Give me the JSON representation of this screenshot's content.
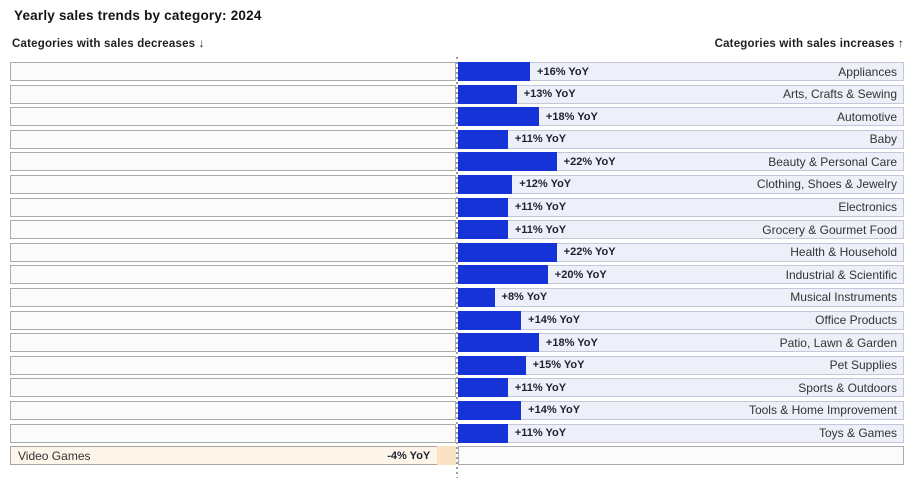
{
  "title": "Yearly sales trends by category: 2024",
  "headers": {
    "left": "Categories with sales decreases ↓",
    "right": "Categories with sales increases ↑"
  },
  "colors": {
    "increase_bar": "#1533d6",
    "increase_row_bg": "#eef0f9",
    "decrease_bar": "#fae3c3",
    "decrease_row_bg": "#fdf5ea",
    "empty_row_bg": "#fbfbfb"
  },
  "chart_data": {
    "type": "bar",
    "orientation": "horizontal-diverging",
    "title": "Yearly sales trends by category: 2024",
    "unit": "% YoY",
    "xlim_percent": [
      -100,
      100
    ],
    "legend": "none",
    "grid": "center-divider-dotted",
    "categories": [
      "Appliances",
      "Arts, Crafts & Sewing",
      "Automotive",
      "Baby",
      "Beauty & Personal Care",
      "Clothing, Shoes & Jewelry",
      "Electronics",
      "Grocery & Gourmet Food",
      "Health & Household",
      "Industrial & Scientific",
      "Musical Instruments",
      "Office Products",
      "Patio, Lawn & Garden",
      "Pet Supplies",
      "Sports & Outdoors",
      "Tools & Home Improvement",
      "Toys & Games",
      "Video Games"
    ],
    "values": [
      16,
      13,
      18,
      11,
      22,
      12,
      11,
      11,
      22,
      20,
      8,
      14,
      18,
      15,
      11,
      14,
      11,
      -4
    ],
    "value_labels": [
      "+16% YoY",
      "+13% YoY",
      "+18% YoY",
      "+11% YoY",
      "+22% YoY",
      "+12% YoY",
      "+11% YoY",
      "+11% YoY",
      "+22% YoY",
      "+20% YoY",
      "+8% YoY",
      "+14% YoY",
      "+18% YoY",
      "+15% YoY",
      "+11% YoY",
      "+14% YoY",
      "+11% YoY",
      "-4% YoY"
    ]
  }
}
